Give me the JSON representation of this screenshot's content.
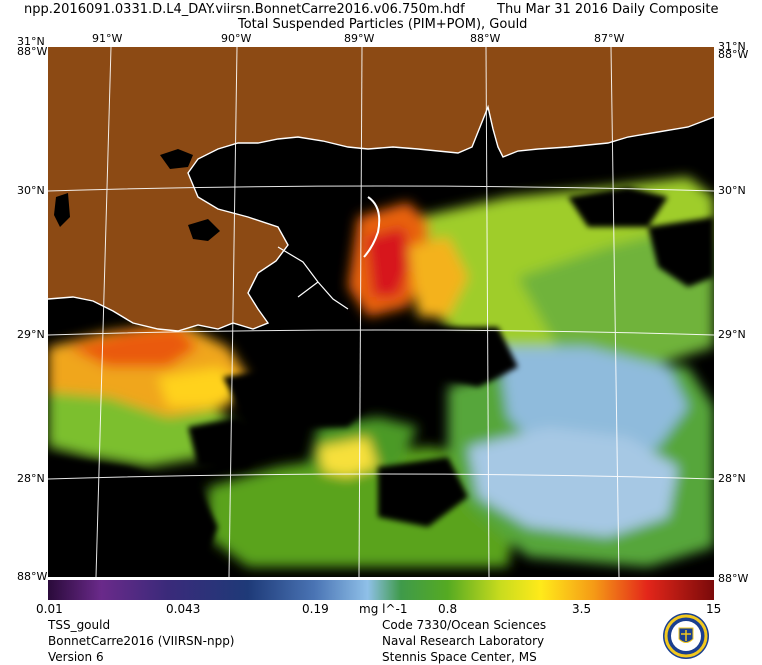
{
  "header": {
    "filename": "npp.2016091.0331.D.L4_DAY.viirsn.BonnetCarre2016.v06.750m.hdf",
    "date": "Thu Mar 31 2016 Daily Composite",
    "product": "Total Suspended Particles (PIM+POM), Gould"
  },
  "map": {
    "top_lon_labels": [
      "91°W",
      "90°W",
      "89°W",
      "88°W",
      "87°W"
    ],
    "left_lat_labels": [
      "31°N",
      "30°N",
      "29°N",
      "28°N"
    ],
    "right_lat_labels": [
      "31°N",
      "30°N",
      "29°N",
      "28°N"
    ],
    "corner_top_left": "88°W",
    "corner_top_right": "88°W",
    "corner_bottom_left": "88°W",
    "corner_bottom_right": "88°W",
    "colors": {
      "land": "#8c4a14",
      "no_data": "#000000",
      "coast": "#ffffff",
      "grid": "#ffffff"
    }
  },
  "colorbar": {
    "ticks": [
      "0.01",
      "0.043",
      "0.19",
      "0.8",
      "3.5",
      "15"
    ],
    "units": "mg l^-1"
  },
  "footer": {
    "left": [
      "TSS_gould",
      "BonnetCarre2016 (VIIRSN-npp)",
      "Version 6"
    ],
    "right": [
      "Code 7330/Ocean Sciences",
      "Naval Research Laboratory",
      "Stennis Space Center, MS"
    ]
  }
}
